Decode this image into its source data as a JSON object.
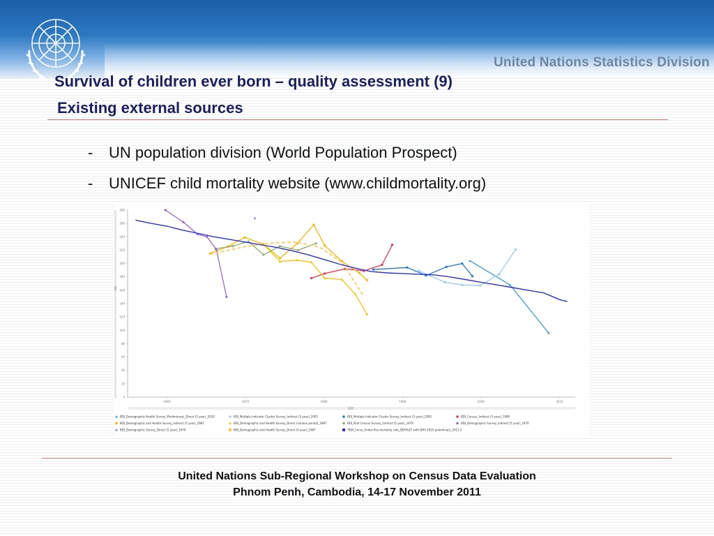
{
  "header": {
    "division_name": "United Nations Statistics Division"
  },
  "slide": {
    "title_line1": "Survival of children ever born – quality assessment (9)",
    "title_line2": "Existing external sources",
    "bullets": [
      "UN population division (World Population Prospect)",
      "UNICEF child mortality website (www.childmortality.org)"
    ]
  },
  "footer": {
    "line1": "United Nations Sub-Regional Workshop on Census Data Evaluation",
    "line2": "Phnom Penh, Cambodia, 14-17 November 2011"
  },
  "chart_data": {
    "type": "line",
    "title": "",
    "xlabel": "",
    "ylabel": "",
    "xlim": [
      1955,
      2012
    ],
    "ylim": [
      0,
      280
    ],
    "x_ticks": [
      1960,
      1970,
      1980,
      1990,
      2000,
      2010
    ],
    "y_ticks": [
      0,
      20,
      40,
      60,
      80,
      100,
      120,
      140,
      160,
      180,
      200,
      220,
      240,
      260,
      280
    ],
    "grid": false,
    "legend_position": "bottom",
    "series": [
      {
        "name": "BDI_Demographic Health Survey (Preliminary)_Direct (5 year)_2010",
        "color": "#3399dd",
        "style": "solid",
        "marker": "triangle",
        "x": [
          1998.6,
          2003.7,
          2008.6
        ],
        "y": [
          204,
          168,
          96
        ]
      },
      {
        "name": "BDI_Multiple Indicator Cluster Survey_Indirect (5 year)_2005",
        "color": "#99ccee",
        "style": "solid",
        "marker": "circle",
        "x": [
          1992.1,
          1995.4,
          1997.6,
          1999.9,
          2002.3,
          2004.4
        ],
        "y": [
          189,
          172,
          168,
          167,
          184,
          221
        ]
      },
      {
        "name": "BDI_Multiple Indicator Cluster Survey_Indirect (5 year)_2000",
        "color": "#2277cc",
        "style": "solid",
        "marker": "circle",
        "x": [
          1986.3,
          1990.6,
          1993.0,
          1995.6,
          1997.6,
          1998.9
        ],
        "y": [
          191,
          194,
          182,
          195,
          200,
          181
        ]
      },
      {
        "name": "BDI_Census_Indirect (5 year)_1990",
        "color": "#e8334f",
        "style": "solid",
        "marker": "circle",
        "x": [
          1978.4,
          1980.1,
          1982.7,
          1985.1,
          1987.4,
          1988.7
        ],
        "y": [
          178,
          185,
          192,
          189,
          198,
          228
        ]
      },
      {
        "name": "BDI_Demographic and Health Survey_Indirect (5 year)_1987",
        "color": "#f7b500",
        "style": "solid",
        "marker": "circle",
        "x": [
          1965.5,
          1967.7,
          1969.9,
          1972.3,
          1974.4,
          1976.6,
          1978.7,
          1980.1,
          1982.3,
          1984.5,
          1985.5
        ],
        "y": [
          215,
          225,
          239,
          229,
          208,
          230,
          258,
          227,
          203,
          186,
          175
        ]
      },
      {
        "name": "BDI_Demographic and Health Survey_Direct (various period)_1987",
        "color": "#f7c200",
        "style": "solid",
        "marker": "triangle",
        "x": [
          1972.3,
          1974.4,
          1976.6,
          1978.4,
          1980.1,
          1982.3,
          1984.0,
          1985.5
        ],
        "y": [
          229,
          203,
          205,
          202,
          178,
          176,
          154,
          124
        ]
      },
      {
        "name": "BDI_Post Census Survey_Indirect (5 year)_1979",
        "color": "#8faf6a",
        "style": "solid",
        "marker": "circle",
        "x": [
          1966.2,
          1968.4,
          1970.4,
          1972.3,
          1974.4,
          1976.7,
          1979.0
        ],
        "y": [
          222,
          226,
          233,
          213,
          226,
          220,
          230
        ]
      },
      {
        "name": "BDI_Demographic Survey_Indirect (5 year)_1970",
        "color": "#9966cc",
        "style": "solid",
        "marker": "circle",
        "x": [
          1959.8,
          1962.1,
          1963.9,
          1965.1,
          1966.3,
          1967.6
        ],
        "y": [
          280,
          262,
          244,
          240,
          221,
          150
        ]
      },
      {
        "name": "BDI_Demographic Survey_Direct (5 year)_1970",
        "color": "#8877cc",
        "style": "solid",
        "marker": "triangle",
        "x": [
          1971.2
        ],
        "y": [
          268
        ]
      },
      {
        "name": "BDI_Demographic and Health Survey_Direct (5 year)_1987",
        "color": "#f7c84a",
        "style": "dashed",
        "marker": "none",
        "x": [
          1965.5,
          1969.9,
          1973.5,
          1976.6,
          1979.5,
          1982.3,
          1985.0
        ],
        "y": [
          214,
          225,
          231,
          232,
          224,
          202,
          152
        ]
      },
      {
        "name": "*BDI_Cerso_Under-five mortality rate_DEFAULT with DHS 2010 preliminary_2011.5",
        "color": "#2f2fd0",
        "style": "solid",
        "marker": "none",
        "x": [
          1956,
          1958,
          1960,
          1962,
          1964,
          1966,
          1968,
          1970,
          1972,
          1974,
          1976,
          1978,
          1980,
          1982,
          1984,
          1986,
          1988,
          1990,
          1992,
          1994,
          1996,
          1998,
          2000,
          2002,
          2004,
          2006,
          2008,
          2010,
          2011
        ],
        "y": [
          265,
          260,
          256,
          250,
          245,
          240,
          236,
          232,
          228,
          224,
          219,
          213,
          206,
          199,
          193,
          188,
          186,
          185,
          184,
          183,
          180,
          176,
          172,
          168,
          164,
          160,
          156,
          146,
          143
        ]
      }
    ]
  }
}
